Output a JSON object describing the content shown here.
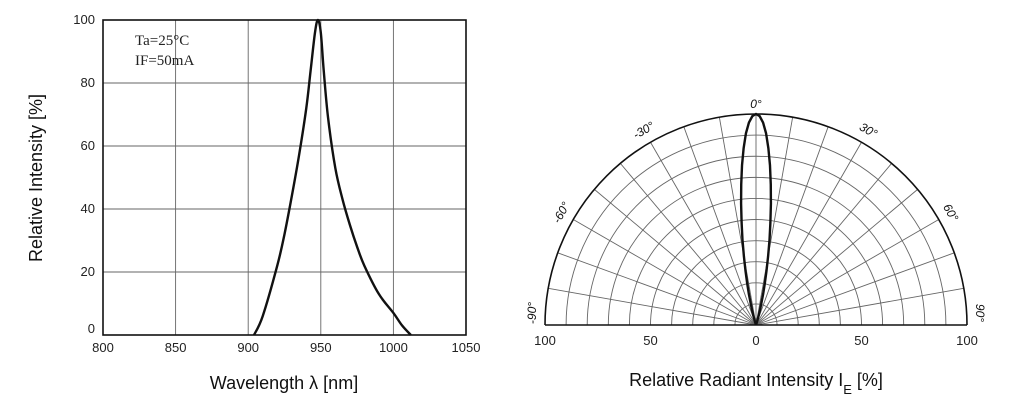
{
  "chart_data": [
    {
      "type": "line",
      "xlabel": "Wavelength λ [nm]",
      "ylabel": "Relative   Intensity [%]",
      "xlim": [
        800,
        1050
      ],
      "ylim": [
        0,
        100
      ],
      "xticks": [
        "800",
        "850",
        "900",
        "950",
        "1000",
        "1050"
      ],
      "yticks": [
        "0",
        "20",
        "40",
        "60",
        "80",
        "100"
      ],
      "annotations": [
        "Ta=25°C",
        "IF=50mA"
      ],
      "grid": true,
      "series": [
        {
          "x": [
            904,
            910,
            920,
            925,
            930,
            935,
            940,
            943,
            946,
            948,
            950,
            952,
            955,
            960,
            965,
            970,
            975,
            980,
            990,
            1000,
            1006,
            1012
          ],
          "y": [
            0,
            6,
            22,
            32,
            44,
            57,
            72,
            84,
            96,
            100,
            96,
            84,
            69,
            53,
            43,
            35,
            28,
            22,
            13,
            7,
            3,
            0
          ]
        }
      ]
    },
    {
      "type": "polar",
      "xlabel": "Relative Radiant Intensity I_E [%]",
      "rticks": [
        "100",
        "50",
        "0",
        "50",
        "100"
      ],
      "angle_labels": [
        {
          "deg": 0,
          "text": "0°"
        },
        {
          "deg": -30,
          "text": "-30°"
        },
        {
          "deg": 30,
          "text": "30°"
        },
        {
          "deg": -60,
          "text": "-60°"
        },
        {
          "deg": 60,
          "text": "60°"
        },
        {
          "deg": -90,
          "text": "-90°"
        },
        {
          "deg": 90,
          "text": "90°"
        }
      ],
      "grid": true,
      "series": [
        {
          "angle_deg": [
            0,
            1,
            2,
            3,
            4,
            5,
            6,
            7,
            8,
            9,
            10,
            11,
            12,
            13,
            14,
            15,
            16,
            17,
            18,
            19,
            20
          ],
          "intensity": [
            100,
            99,
            96,
            91,
            84,
            76,
            67,
            58,
            49,
            41,
            33,
            26,
            20,
            15,
            10,
            7,
            4,
            2,
            1,
            0.5,
            0
          ]
        }
      ]
    }
  ]
}
